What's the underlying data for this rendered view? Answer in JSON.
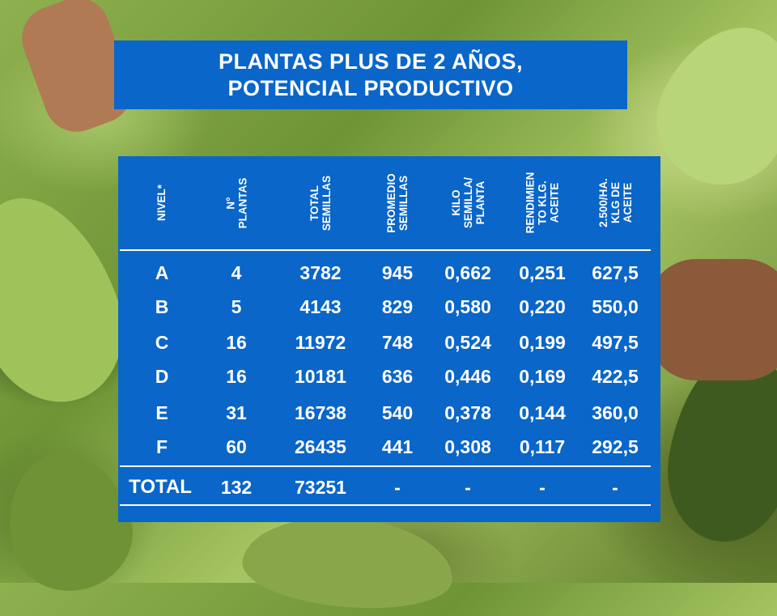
{
  "slide": {
    "title_line1": "PLANTAS PLUS DE 2 AÑOS,",
    "title_line2": "POTENCIAL  PRODUCTIVO"
  },
  "table": {
    "headers": [
      [
        "NIVEL*"
      ],
      [
        "N°",
        "PLANTAS"
      ],
      [
        "TOTAL",
        "SEMILLAS"
      ],
      [
        "PROMEDIO",
        "SEMILLAS"
      ],
      [
        "KILO",
        "SEMILLA/",
        "PLANTA"
      ],
      [
        "RENDIMIEN",
        "TO KLG.",
        "ACEITE"
      ],
      [
        "2.500/HA.",
        "KLG DE",
        "ACEITE"
      ]
    ],
    "rows": [
      [
        "A",
        "4",
        "3782",
        "945",
        "0,662",
        "0,251",
        "627,5"
      ],
      [
        "B",
        "5",
        "4143",
        "829",
        "0,580",
        "0,220",
        "550,0"
      ],
      [
        "C",
        "16",
        "11972",
        "748",
        "0,524",
        "0,199",
        "497,5"
      ],
      [
        "D",
        "16",
        "10181",
        "636",
        "0,446",
        "0,169",
        "422,5"
      ],
      [
        "E",
        "31",
        "16738",
        "540",
        "0,378",
        "0,144",
        "360,0"
      ],
      [
        "F",
        "60",
        "26435",
        "441",
        "0,308",
        "0,117",
        "292,5"
      ]
    ],
    "total": [
      "TOTAL",
      "132",
      "73251",
      "-",
      "-",
      "-",
      "-"
    ]
  },
  "colors": {
    "panel": "#0a66c8",
    "text": "#ffffff",
    "background_foliage": "#7fa444"
  }
}
